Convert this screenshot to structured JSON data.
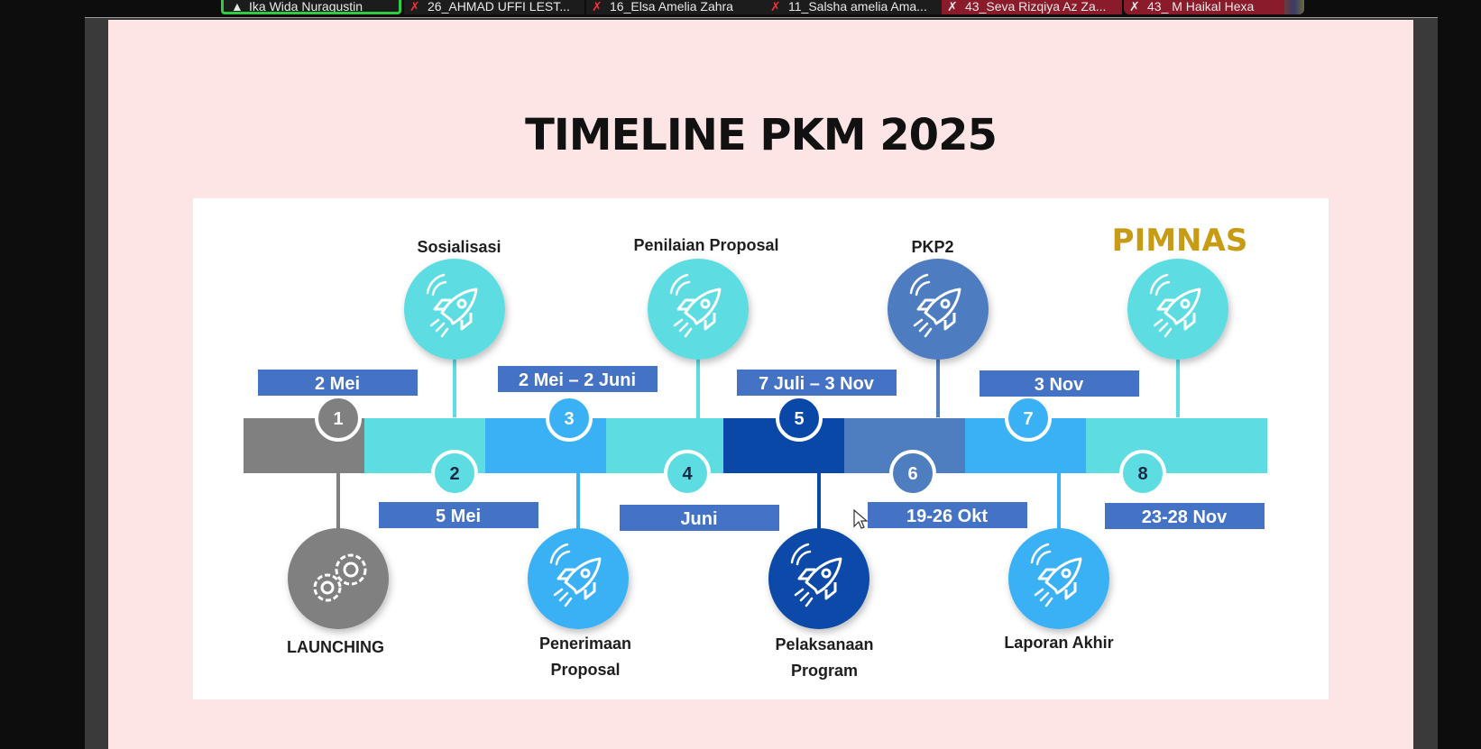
{
  "participants": [
    {
      "name": "Ika Wida Nuragustin",
      "active": true
    },
    {
      "name": "26_AHMAD UFFI LEST..."
    },
    {
      "name": "16_Elsa Amelia Zahra"
    },
    {
      "name": "11_Salsha amelia Ama..."
    },
    {
      "name": "43_Seva Rizqiya Az Za..."
    },
    {
      "name": "43_ M Haikal Hexa"
    }
  ],
  "slide": {
    "title": "TIMELINE PKM 2025"
  },
  "timeline": {
    "steps": [
      {
        "number": "1",
        "date": "2 Mei",
        "label": "LAUNCHING",
        "icon": "gears-icon",
        "color": "#808080"
      },
      {
        "number": "2",
        "date": "5 Mei",
        "label": "Sosialisasi",
        "icon": "rocket-icon",
        "color": "#5ddce2"
      },
      {
        "number": "3",
        "date": "2 Mei – 2 Juni",
        "label_line1": "Penerimaan",
        "label_line2": "Proposal",
        "icon": "rocket-icon",
        "color": "#3bb1f5"
      },
      {
        "number": "4",
        "date": "Juni",
        "label": "Penilaian Proposal",
        "icon": "rocket-icon",
        "color": "#5ddce2"
      },
      {
        "number": "5",
        "date": "7 Juli – 3 Nov",
        "label_line1": "Pelaksanaan",
        "label_line2": "Program",
        "icon": "rocket-icon",
        "color": "#0a48a8"
      },
      {
        "number": "6",
        "date": "19-26 Okt",
        "label": "PKP2",
        "icon": "rocket-icon",
        "color": "#4e7dc0"
      },
      {
        "number": "7",
        "date": "3 Nov",
        "label": "Laporan Akhir",
        "icon": "rocket-icon",
        "color": "#3bb1f5"
      },
      {
        "number": "8",
        "date": "23-28 Nov",
        "label": "PIMNAS",
        "icon": "rocket-icon",
        "color": "#5ddce2"
      }
    ],
    "colors": {
      "date_box": "#4472c4",
      "pimnas_label": "#c89b14",
      "gray": "#808080",
      "light_cyan": "#5ddce2",
      "sky": "#3bb1f5",
      "navy": "#0a48a8",
      "steel": "#4e7dc0"
    }
  }
}
